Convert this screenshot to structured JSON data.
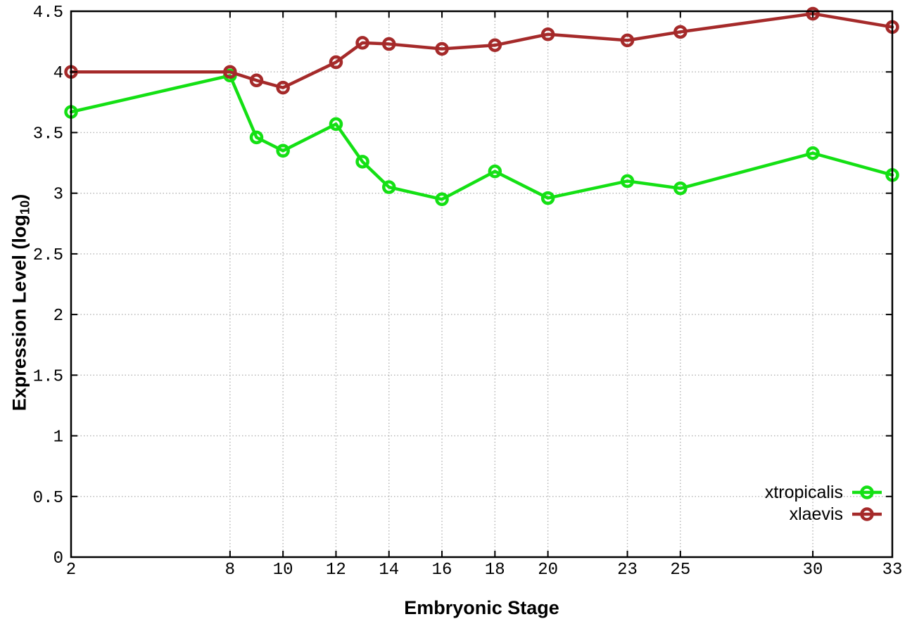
{
  "chart_data": {
    "type": "line",
    "title": "",
    "xlabel": "Embryonic Stage",
    "ylabel": "Expression Level (log10)",
    "ylabel_prefix": "Expression Level (log",
    "ylabel_sub": "10",
    "ylabel_suffix": ")",
    "xlim": [
      2,
      33
    ],
    "ylim": [
      0,
      4.5
    ],
    "x_ticks": [
      2,
      8,
      10,
      12,
      14,
      16,
      18,
      20,
      23,
      25,
      30,
      33
    ],
    "y_ticks": [
      0,
      0.5,
      1,
      1.5,
      2,
      2.5,
      3,
      3.5,
      4,
      4.5
    ],
    "grid": true,
    "legend_position": "bottom-right",
    "background_color": "#ffffff",
    "axis_color": "#000000",
    "grid_color": "#b3b3b3",
    "x": [
      2,
      8,
      9,
      10,
      12,
      13,
      14,
      16,
      18,
      20,
      23,
      25,
      30,
      33
    ],
    "series": [
      {
        "name": "xtropicalis",
        "color": "#14e014",
        "values": [
          3.67,
          3.97,
          3.46,
          3.35,
          3.57,
          3.26,
          3.05,
          2.95,
          3.18,
          2.96,
          3.1,
          3.04,
          3.33,
          3.15
        ]
      },
      {
        "name": "xlaevis",
        "color": "#a52a2a",
        "values": [
          4.0,
          4.0,
          3.93,
          3.87,
          4.08,
          4.24,
          4.23,
          4.19,
          4.22,
          4.31,
          4.26,
          4.33,
          4.48,
          4.37
        ]
      }
    ]
  }
}
